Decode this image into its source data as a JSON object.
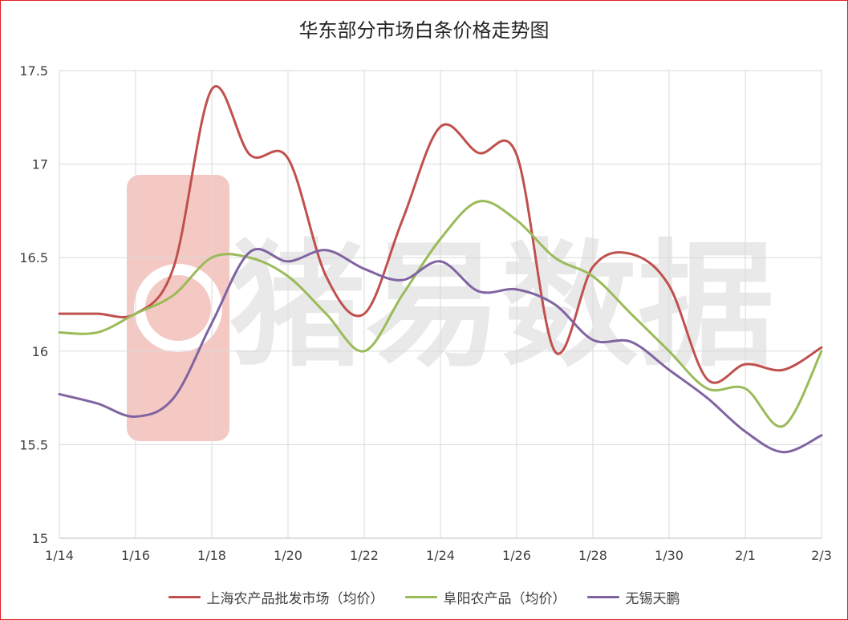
{
  "chart_data": {
    "type": "line",
    "title": "华东部分市场白条价格走势图",
    "x": [
      "1/14",
      "1/15",
      "1/16",
      "1/17",
      "1/18",
      "1/19",
      "1/20",
      "1/21",
      "1/22",
      "1/23",
      "1/24",
      "1/25",
      "1/26",
      "1/27",
      "1/28",
      "1/29",
      "1/30",
      "1/31",
      "2/1",
      "2/2",
      "2/3"
    ],
    "x_tick_labels": [
      "1/14",
      "1/16",
      "1/18",
      "1/20",
      "1/22",
      "1/24",
      "1/26",
      "1/28",
      "1/30",
      "2/1",
      "2/3"
    ],
    "ylim": [
      15,
      17.5
    ],
    "yticks": [
      15,
      15.5,
      16,
      16.5,
      17,
      17.5
    ],
    "grid": true,
    "legend_position": "bottom",
    "series": [
      {
        "name": "上海农产品批发市场（均价）",
        "color": "#c0504d",
        "values": [
          16.2,
          16.2,
          16.2,
          16.45,
          17.4,
          17.05,
          17.03,
          16.4,
          16.2,
          16.7,
          17.2,
          17.06,
          17.05,
          16.0,
          16.45,
          16.52,
          16.35,
          15.85,
          15.93,
          15.9,
          16.02
        ]
      },
      {
        "name": "阜阳农产品（均价）",
        "color": "#9bbb59",
        "values": [
          16.1,
          16.1,
          16.2,
          16.3,
          16.5,
          16.5,
          16.4,
          16.2,
          16.0,
          16.3,
          16.6,
          16.8,
          16.7,
          16.5,
          16.4,
          16.2,
          16.0,
          15.8,
          15.8,
          15.6,
          16.0
        ]
      },
      {
        "name": "无锡天鹏",
        "color": "#8064a2",
        "values": [
          15.77,
          15.72,
          15.65,
          15.75,
          16.15,
          16.53,
          16.48,
          16.54,
          16.44,
          16.38,
          16.48,
          16.32,
          16.33,
          16.25,
          16.06,
          16.05,
          15.9,
          15.75,
          15.57,
          15.46,
          15.55
        ]
      }
    ]
  },
  "watermark": {
    "text": "猪易数据",
    "logo_color": "#f4c9c4",
    "text_color": "#e9e9e9"
  }
}
